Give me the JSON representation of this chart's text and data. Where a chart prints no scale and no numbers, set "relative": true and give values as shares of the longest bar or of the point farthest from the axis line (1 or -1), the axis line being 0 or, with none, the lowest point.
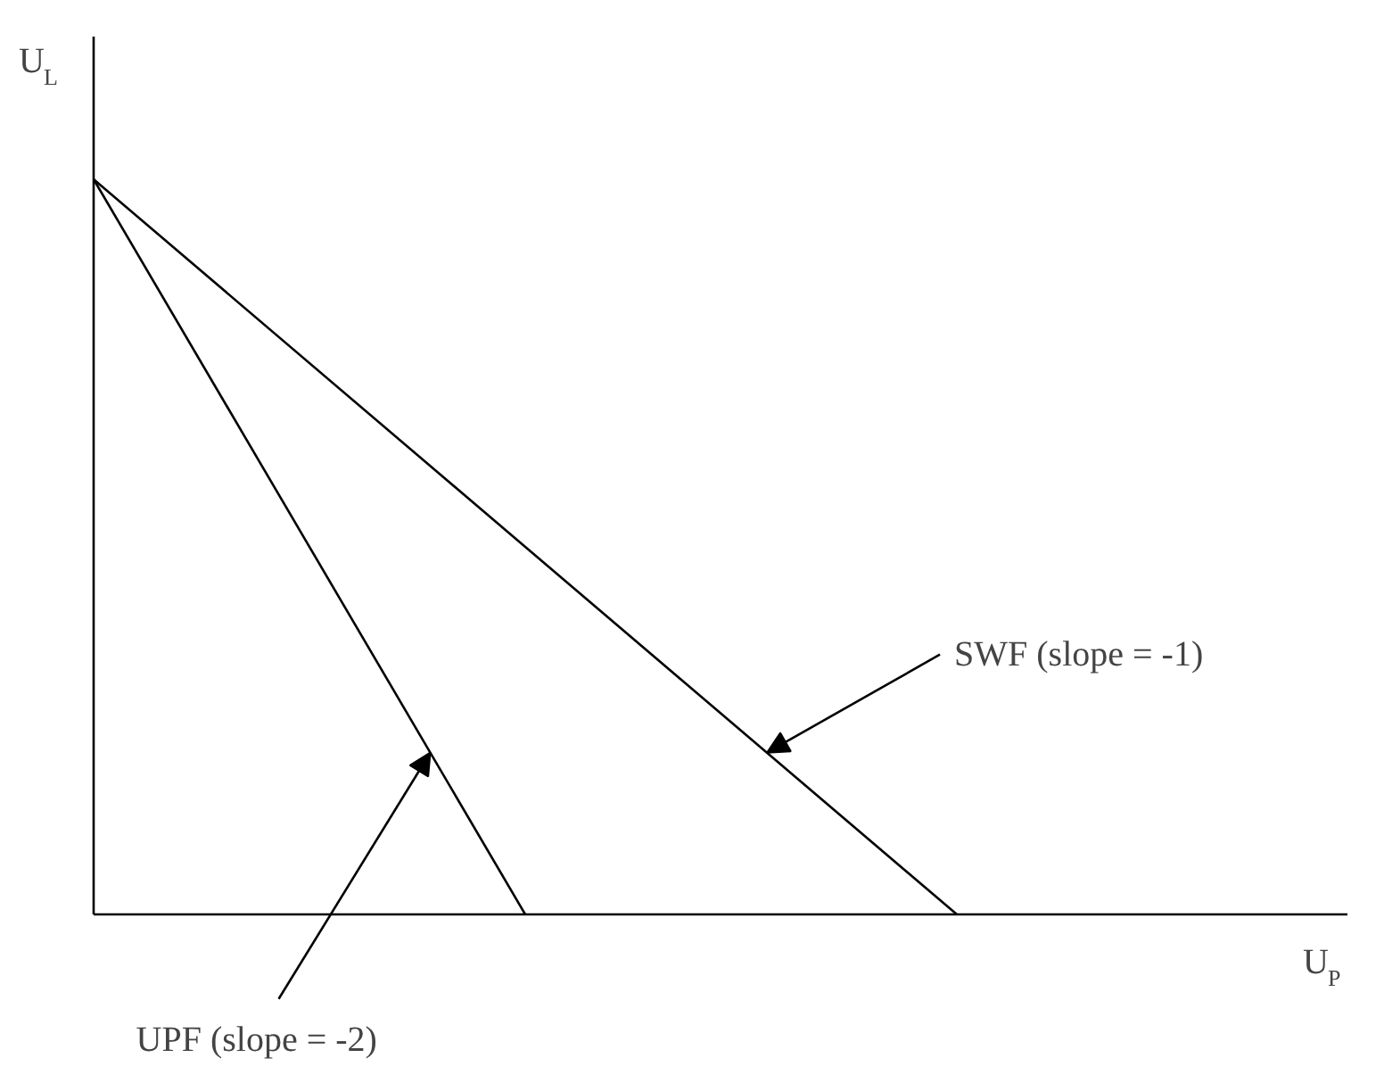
{
  "chart_data": {
    "type": "line",
    "relative": true,
    "xlabel": "U$_{P}$",
    "ylabel": "U$_{L}$",
    "categories": [
      null,
      null,
      null
    ],
    "marker": "none",
    "line_style": "solid",
    "series": [
      {
        "color": "#000000",
        "values": [
          1,
          0,
          null
        ]
      },
      {
        "color": "#000000",
        "values": [
          1,
          0.5,
          0
        ]
      }
    ],
    "annotations": [
      "SWF (slope = -1)",
      "UPF (slope = -2)"
    ]
  }
}
